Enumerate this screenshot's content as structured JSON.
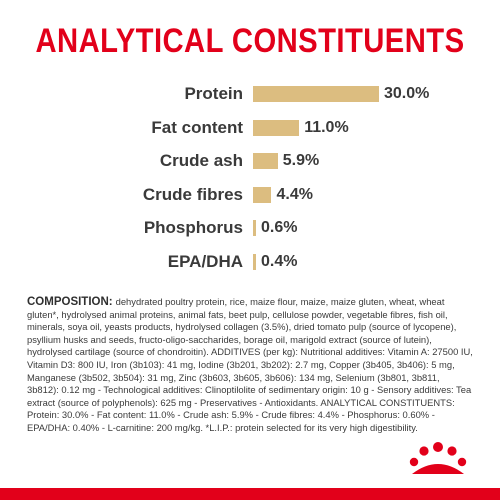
{
  "title": "ANALYTICAL CONSTITUENTS",
  "constituents": [
    {
      "label": "Protein",
      "value_text": "30.0%",
      "value": 30.0
    },
    {
      "label": "Fat content",
      "value_text": "11.0%",
      "value": 11.0
    },
    {
      "label": "Crude ash",
      "value_text": "5.9%",
      "value": 5.9
    },
    {
      "label": "Crude fibres",
      "value_text": "4.4%",
      "value": 4.4
    },
    {
      "label": "Phosphorus",
      "value_text": "0.6%",
      "value": 0.6
    },
    {
      "label": "EPA/DHA",
      "value_text": "0.4%",
      "value": 0.4
    }
  ],
  "composition": {
    "heading": "COMPOSITION:",
    "text": "dehydrated poultry protein, rice, maize flour, maize, maize gluten, wheat, wheat gluten*, hydrolysed animal proteins, animal fats, beet pulp, cellulose powder, vegetable fibres, fish oil, minerals, soya oil, yeasts products, hydrolysed collagen (3.5%), dried tomato pulp (source of lycopene), psyllium husks and seeds, fructo-oligo-saccharides, borage oil, marigold extract (source of lutein), hydrolysed cartilage (source of chondroitin). ADDITIVES (per kg): Nutritional additives: Vitamin A: 27500 IU, Vitamin D3: 800 IU, Iron (3b103): 41 mg, Iodine (3b201, 3b202): 2.7 mg, Copper (3b405, 3b406): 5 mg, Manganese (3b502, 3b504): 31 mg, Zinc (3b603, 3b605, 3b606): 134 mg, Selenium (3b801, 3b811, 3b812): 0.12 mg - Technological additives: Clinoptilolite of sedimentary origin: 10 g - Sensory additives: Tea extract (source of polyphenols): 625 mg - Preservatives - Antioxidants. ANALYTICAL CONSTITUENTS: Protein: 30.0% - Fat content: 11.0% - Crude ash: 5.9% - Crude fibres: 4.4% - Phosphorus: 0.60% - EPA/DHA: 0.40% - L-carnitine: 200 mg/kg. *L.I.P.: protein selected for its very high digestibility."
  },
  "colors": {
    "brand_red": "#e2001a",
    "bar": "#dcbd80",
    "text": "#3a3a3a"
  },
  "icons": {
    "logo": "royal-canin-crown-logo"
  }
}
